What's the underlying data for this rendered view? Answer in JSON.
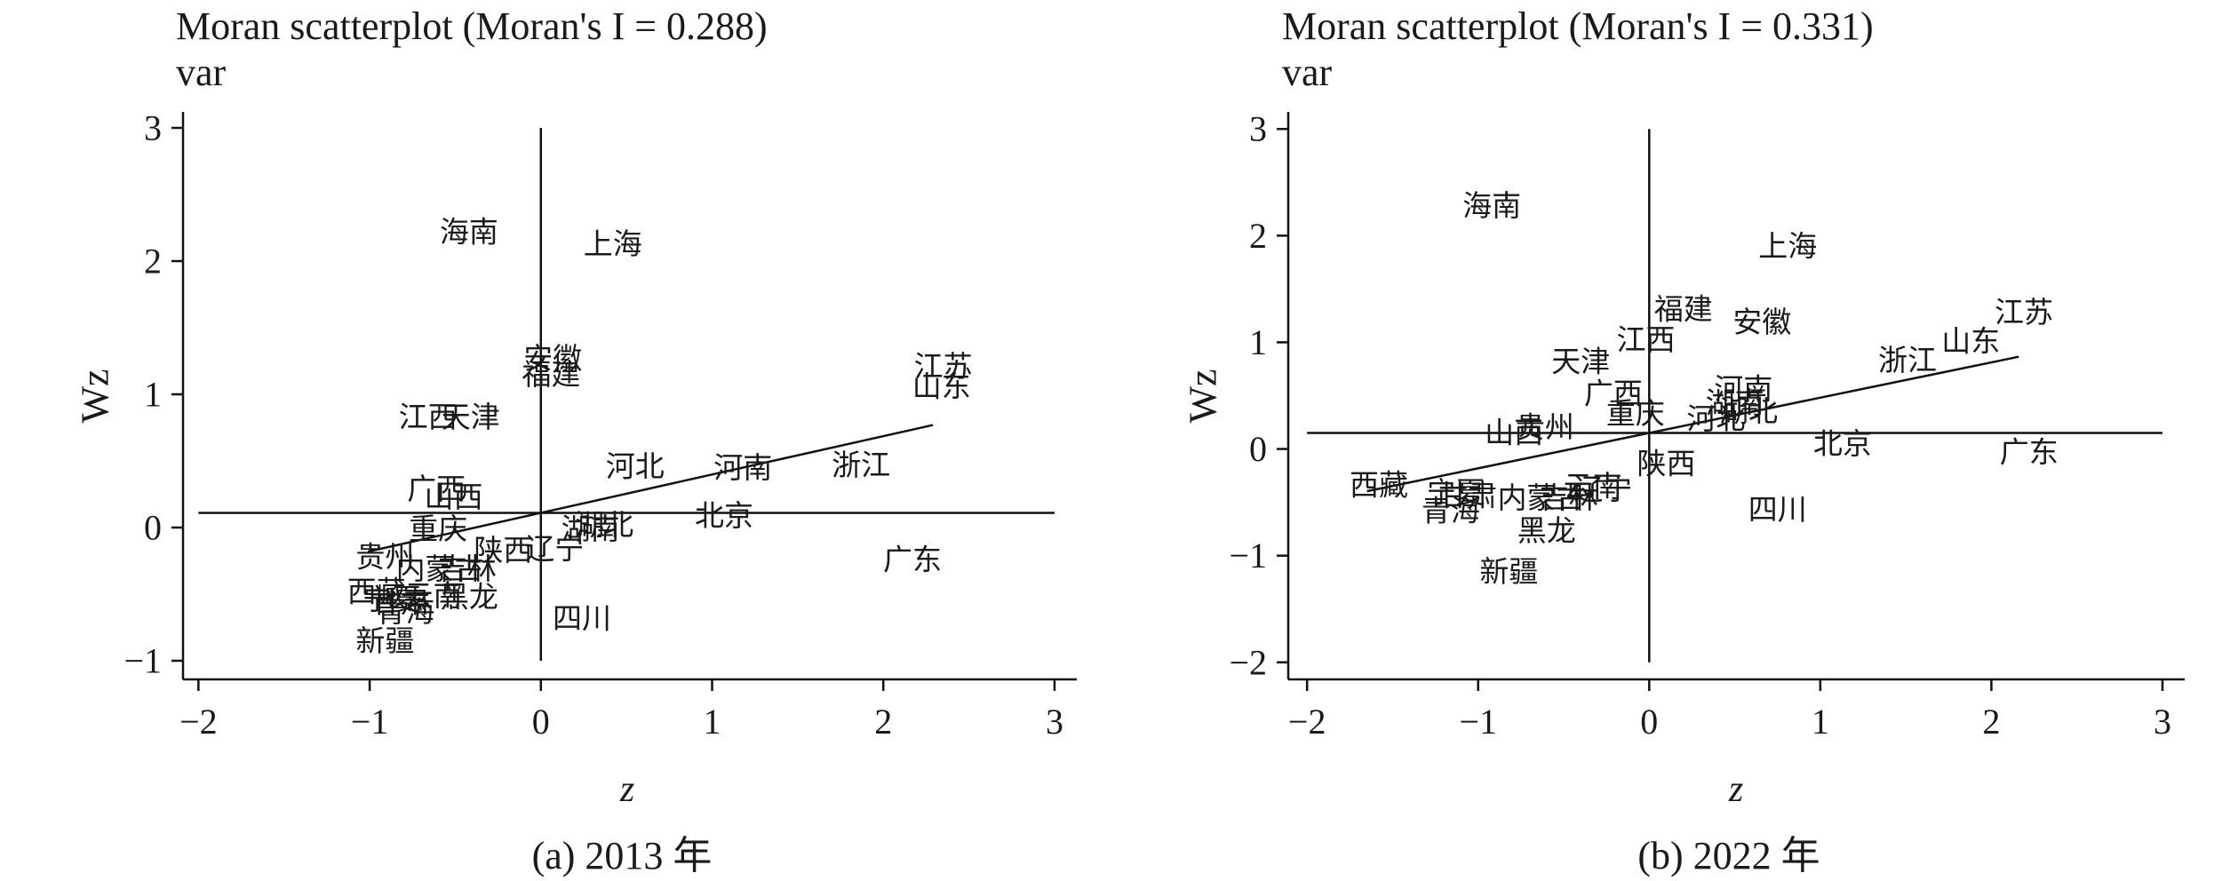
{
  "chart_data": [
    {
      "type": "scatter",
      "title": "Moran scatterplot (Moran's I = 0.288)",
      "subtitle": "var",
      "xlabel": "z",
      "ylabel": "Wz",
      "caption": "(a) 2013 年",
      "xlim": [
        -2.09,
        3.13
      ],
      "ylim": [
        -1.14,
        3.12
      ],
      "x_ticks": [
        -2,
        -1,
        0,
        1,
        2,
        3
      ],
      "x_tick_labels": [
        "−2",
        "−1",
        "0",
        "1",
        "2",
        "3"
      ],
      "y_ticks": [
        -1,
        0,
        1,
        2,
        3
      ],
      "y_tick_labels": [
        "−1",
        "0",
        "1",
        "2",
        "3"
      ],
      "grid": false,
      "reference_lines": {
        "x": 0,
        "y": 0.11
      },
      "fit_line": {
        "slope": 0.288,
        "intercept": 0.11,
        "x_range": [
          -1.01,
          2.29
        ]
      },
      "points": [
        {
          "label": "海南",
          "x": -0.42,
          "y": 2.21
        },
        {
          "label": "上海",
          "x": 0.42,
          "y": 2.12
        },
        {
          "label": "安徽",
          "x": 0.07,
          "y": 1.26
        },
        {
          "label": "福建",
          "x": 0.06,
          "y": 1.14
        },
        {
          "label": "江苏",
          "x": 2.35,
          "y": 1.2
        },
        {
          "label": "山东",
          "x": 2.34,
          "y": 1.05
        },
        {
          "label": "江西",
          "x": -0.66,
          "y": 0.82
        },
        {
          "label": "天津",
          "x": -0.41,
          "y": 0.82
        },
        {
          "label": "河北",
          "x": 0.55,
          "y": 0.45
        },
        {
          "label": "河南",
          "x": 1.18,
          "y": 0.44
        },
        {
          "label": "浙江",
          "x": 1.87,
          "y": 0.46
        },
        {
          "label": "广西",
          "x": -0.61,
          "y": 0.28
        },
        {
          "label": "山西",
          "x": -0.51,
          "y": 0.22
        },
        {
          "label": "重庆",
          "x": -0.6,
          "y": -0.02
        },
        {
          "label": "湖北",
          "x": 0.37,
          "y": 0.01
        },
        {
          "label": "湖南",
          "x": 0.29,
          "y": -0.02
        },
        {
          "label": "北京",
          "x": 1.07,
          "y": 0.08
        },
        {
          "label": "广东",
          "x": 2.17,
          "y": -0.25
        },
        {
          "label": "陕西",
          "x": -0.22,
          "y": -0.18
        },
        {
          "label": "辽宁",
          "x": 0.08,
          "y": -0.17
        },
        {
          "label": "贵州",
          "x": -0.91,
          "y": -0.23
        },
        {
          "label": "内蒙古",
          "x": -0.59,
          "y": -0.32
        },
        {
          "label": "吉林",
          "x": -0.43,
          "y": -0.32
        },
        {
          "label": "西藏",
          "x": -0.96,
          "y": -0.49
        },
        {
          "label": "宁夏",
          "x": -0.87,
          "y": -0.55
        },
        {
          "label": "甘肃",
          "x": -0.82,
          "y": -0.57
        },
        {
          "label": "青海",
          "x": -0.79,
          "y": -0.64
        },
        {
          "label": "云南",
          "x": -0.63,
          "y": -0.52
        },
        {
          "label": "黑龙",
          "x": -0.42,
          "y": -0.53
        },
        {
          "label": "四川",
          "x": 0.24,
          "y": -0.69
        },
        {
          "label": "新疆",
          "x": -0.91,
          "y": -0.86
        }
      ]
    },
    {
      "type": "scatter",
      "title": "Moran scatterplot (Moran's I = 0.331)",
      "subtitle": "var",
      "xlabel": "z",
      "ylabel": "Wz",
      "caption": "(b) 2022 年",
      "xlim": [
        -2.11,
        3.13
      ],
      "ylim": [
        -2.16,
        3.16
      ],
      "x_ticks": [
        -2,
        -1,
        0,
        1,
        2,
        3
      ],
      "x_tick_labels": [
        "−2",
        "−1",
        "0",
        "1",
        "2",
        "3"
      ],
      "y_ticks": [
        -2,
        -1,
        0,
        1,
        2,
        3
      ],
      "y_tick_labels": [
        "−2",
        "−1",
        "0",
        "1",
        "2",
        "3"
      ],
      "grid": false,
      "reference_lines": {
        "x": 0,
        "y": 0.15
      },
      "fit_line": {
        "slope": 0.331,
        "intercept": 0.15,
        "x_range": [
          -1.65,
          2.16
        ]
      },
      "points": [
        {
          "label": "海南",
          "x": -0.92,
          "y": 2.27
        },
        {
          "label": "上海",
          "x": 0.81,
          "y": 1.89
        },
        {
          "label": "江苏",
          "x": 2.19,
          "y": 1.27
        },
        {
          "label": "山东",
          "x": 1.88,
          "y": 1.0
        },
        {
          "label": "浙江",
          "x": 1.51,
          "y": 0.82
        },
        {
          "label": "福建",
          "x": 0.2,
          "y": 1.3
        },
        {
          "label": "安徽",
          "x": 0.66,
          "y": 1.18
        },
        {
          "label": "江西",
          "x": -0.02,
          "y": 1.01
        },
        {
          "label": "天津",
          "x": -0.4,
          "y": 0.81
        },
        {
          "label": "广西",
          "x": -0.21,
          "y": 0.51
        },
        {
          "label": "重庆",
          "x": -0.08,
          "y": 0.32
        },
        {
          "label": "河南",
          "x": 0.55,
          "y": 0.55
        },
        {
          "label": "湖南",
          "x": 0.5,
          "y": 0.42
        },
        {
          "label": "湖北",
          "x": 0.58,
          "y": 0.34
        },
        {
          "label": "河北",
          "x": 0.39,
          "y": 0.27
        },
        {
          "label": "山西",
          "x": -0.79,
          "y": 0.14
        },
        {
          "label": "贵州",
          "x": -0.61,
          "y": 0.19
        },
        {
          "label": "北京",
          "x": 1.13,
          "y": 0.04
        },
        {
          "label": "广东",
          "x": 2.22,
          "y": -0.04
        },
        {
          "label": "陕西",
          "x": 0.1,
          "y": -0.15
        },
        {
          "label": "西藏",
          "x": -1.58,
          "y": -0.35
        },
        {
          "label": "宁夏",
          "x": -1.13,
          "y": -0.42
        },
        {
          "label": "甘肃",
          "x": -1.06,
          "y": -0.45
        },
        {
          "label": "青海",
          "x": -1.16,
          "y": -0.59
        },
        {
          "label": "内蒙古",
          "x": -0.63,
          "y": -0.47
        },
        {
          "label": "吉林",
          "x": -0.47,
          "y": -0.47
        },
        {
          "label": "云南",
          "x": -0.33,
          "y": -0.36
        },
        {
          "label": "辽宁",
          "x": -0.27,
          "y": -0.39
        },
        {
          "label": "黑龙",
          "x": -0.6,
          "y": -0.78
        },
        {
          "label": "四川",
          "x": 0.75,
          "y": -0.58
        },
        {
          "label": "新疆",
          "x": -0.82,
          "y": -1.16
        }
      ]
    }
  ]
}
